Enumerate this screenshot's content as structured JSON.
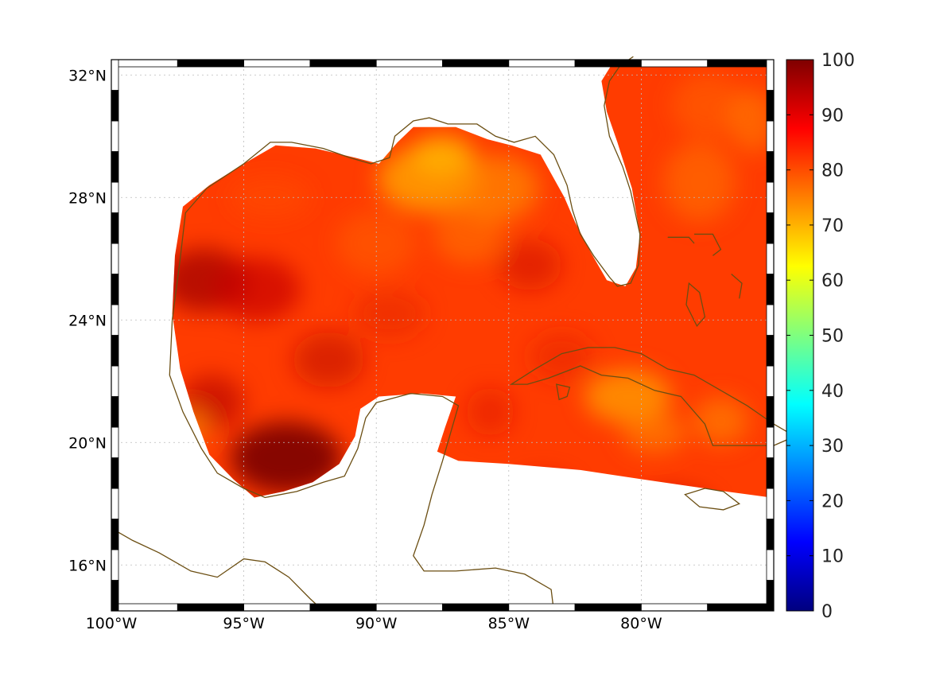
{
  "map": {
    "projection": "equirectangular",
    "lon_range": [
      -100,
      -75
    ],
    "lat_range": [
      14.5,
      32.5
    ],
    "lon_ticks": [
      {
        "lon": -100,
        "label": "100°W"
      },
      {
        "lon": -95,
        "label": "95°W"
      },
      {
        "lon": -90,
        "label": "90°W"
      },
      {
        "lon": -85,
        "label": "85°W"
      },
      {
        "lon": -80,
        "label": "80°W"
      }
    ],
    "lat_ticks": [
      {
        "lat": 32,
        "label": "32°N"
      },
      {
        "lat": 28,
        "label": "28°N"
      },
      {
        "lat": 24,
        "label": "24°N"
      },
      {
        "lat": 20,
        "label": "20°N"
      },
      {
        "lat": 16,
        "label": "16°N"
      }
    ],
    "grid": true,
    "grid_style": "dotted",
    "coastline_color": "#6b4e12",
    "land_color": "#ffffff",
    "field_description_colors": {
      "dominant": "#ff3a00",
      "high": "#9a0000",
      "moderate": "#ffa500"
    }
  },
  "colorbar": {
    "min": 0,
    "max": 100,
    "ticks": [
      "100",
      "90",
      "80",
      "70",
      "60",
      "50",
      "40",
      "30",
      "20",
      "10",
      "0"
    ],
    "colormap": "jet",
    "colormap_stops": [
      "#00007f",
      "#0000ff",
      "#007fff",
      "#00ffff",
      "#7fff7f",
      "#ffff00",
      "#ff7f00",
      "#ff0000",
      "#7f0000"
    ]
  }
}
